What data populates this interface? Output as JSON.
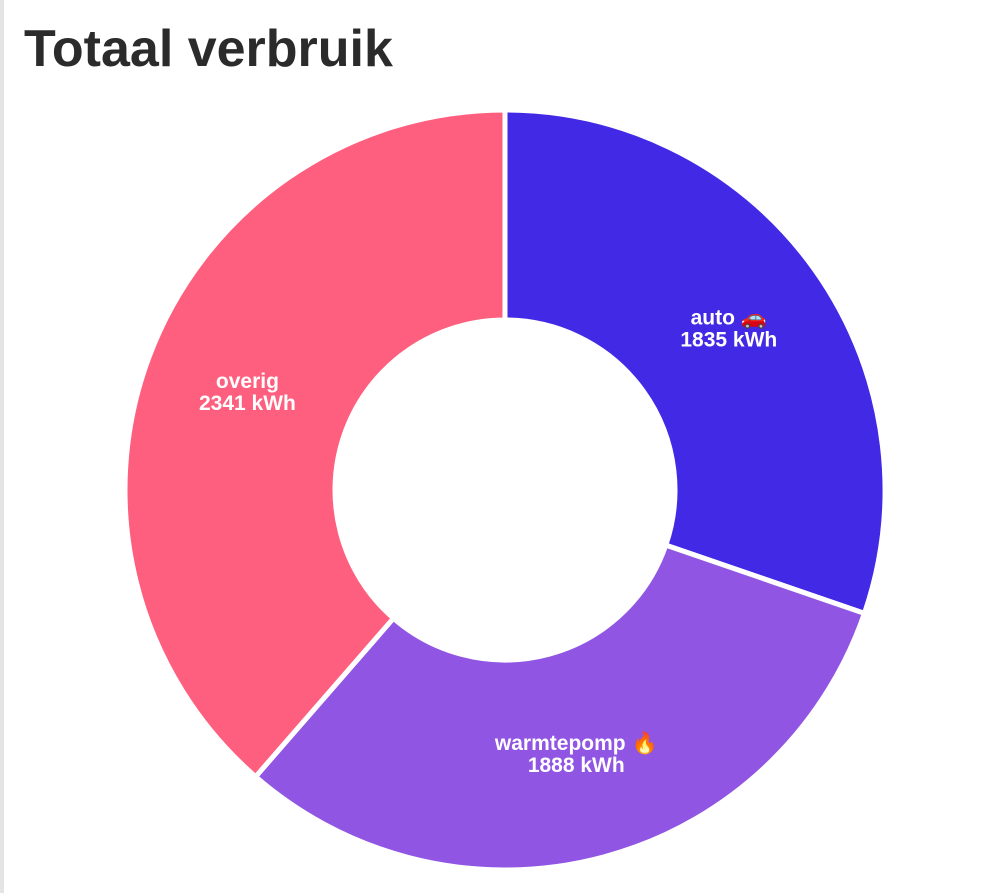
{
  "chart_data": {
    "type": "doughnut",
    "title": "Totaal verbruik",
    "categories": [
      "auto 🚗",
      "warmtepomp 🔥",
      "overig"
    ],
    "values": [
      1835,
      1888,
      2341
    ],
    "value_labels": [
      "1835 kWh",
      "1888 kWh",
      "2341 kWh"
    ],
    "colors": [
      "#4229e6",
      "#9155e3",
      "#ff5f7e"
    ]
  }
}
